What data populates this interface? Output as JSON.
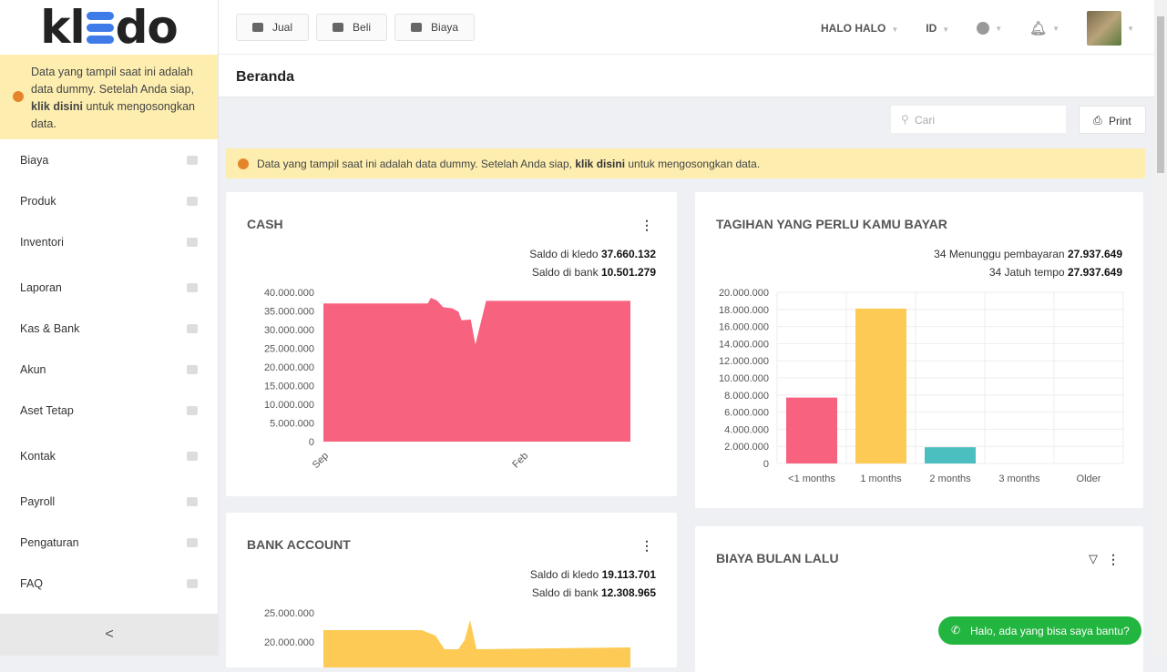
{
  "logo": "kledo",
  "sidebar": {
    "alert": {
      "text1": "Data yang tampil saat ini adalah data dummy. Setelah Anda siap,",
      "link": "klik disini",
      "text2": "untuk mengosongkan data."
    },
    "items": [
      {
        "label": "Biaya"
      },
      {
        "label": "Produk"
      },
      {
        "label": "Inventori"
      },
      {
        "label": "Laporan"
      },
      {
        "label": "Kas & Bank"
      },
      {
        "label": "Akun"
      },
      {
        "label": "Aset Tetap"
      },
      {
        "label": "Kontak"
      },
      {
        "label": "Payroll"
      },
      {
        "label": "Pengaturan"
      },
      {
        "label": "FAQ"
      }
    ],
    "collapse": "<"
  },
  "topbar": {
    "buttons": [
      {
        "label": "Jual"
      },
      {
        "label": "Beli"
      },
      {
        "label": "Biaya"
      }
    ],
    "company": "HALO HALO",
    "lang": "ID"
  },
  "page": {
    "title": "Beranda",
    "search_placeholder": "Cari",
    "print": "Print",
    "alert": {
      "text1": "Data yang tampil saat ini adalah data dummy. Setelah Anda siap,",
      "link": "klik disini",
      "text2": "untuk mengosongkan data."
    }
  },
  "chat": "Halo, ada yang bisa saya bantu?",
  "chart_data": [
    {
      "type": "area",
      "title": "CASH",
      "stats": [
        {
          "label": "Saldo di kledo",
          "value": "37.660.132"
        },
        {
          "label": "Saldo di bank",
          "value": "10.501.279"
        }
      ],
      "yticks": [
        "40.000.000",
        "35.000.000",
        "30.000.000",
        "25.000.000",
        "20.000.000",
        "15.000.000",
        "10.000.000",
        "5.000.000",
        "0"
      ],
      "ylim": [
        0,
        40000000
      ],
      "xticks": [
        {
          "label": "Sep",
          "x": 0
        },
        {
          "label": "Feb",
          "x": 65
        }
      ],
      "color": "#f7627f",
      "x": [
        0,
        34,
        35,
        37,
        39,
        42,
        44,
        45,
        48,
        49.5,
        53,
        100
      ],
      "values": [
        37000000,
        37000000,
        38500000,
        37800000,
        36000000,
        35700000,
        34800000,
        32500000,
        32700000,
        26000000,
        37700000,
        37700000
      ]
    },
    {
      "type": "bar",
      "title": "TAGIHAN YANG PERLU KAMU BAYAR",
      "stats": [
        {
          "label": "34 Menunggu pembayaran",
          "value": "27.937.649"
        },
        {
          "label": "34 Jatuh tempo",
          "value": "27.937.649"
        }
      ],
      "categories": [
        "<1 months",
        "1 months",
        "2 months",
        "3 months",
        "Older"
      ],
      "values": [
        7700000,
        18100000,
        1900000,
        0,
        0
      ],
      "colors": [
        "#f7627f",
        "#fdcb55",
        "#4bbfbf",
        "#999",
        "#999"
      ],
      "yticks": [
        "20.000.000",
        "18.000.000",
        "16.000.000",
        "14.000.000",
        "12.000.000",
        "10.000.000",
        "8.000.000",
        "6.000.000",
        "4.000.000",
        "2.000.000",
        "0"
      ],
      "ylim": [
        0,
        20000000
      ]
    },
    {
      "type": "area",
      "title": "BANK ACCOUNT",
      "stats": [
        {
          "label": "Saldo di kledo",
          "value": "19.113.701"
        },
        {
          "label": "Saldo di bank",
          "value": "12.308.965"
        }
      ],
      "yticks": [
        "25.000.000",
        "20.000.000"
      ],
      "color": "#fdcb55"
    },
    {
      "type": "pie",
      "title": "BIAYA BULAN LALU"
    }
  ]
}
